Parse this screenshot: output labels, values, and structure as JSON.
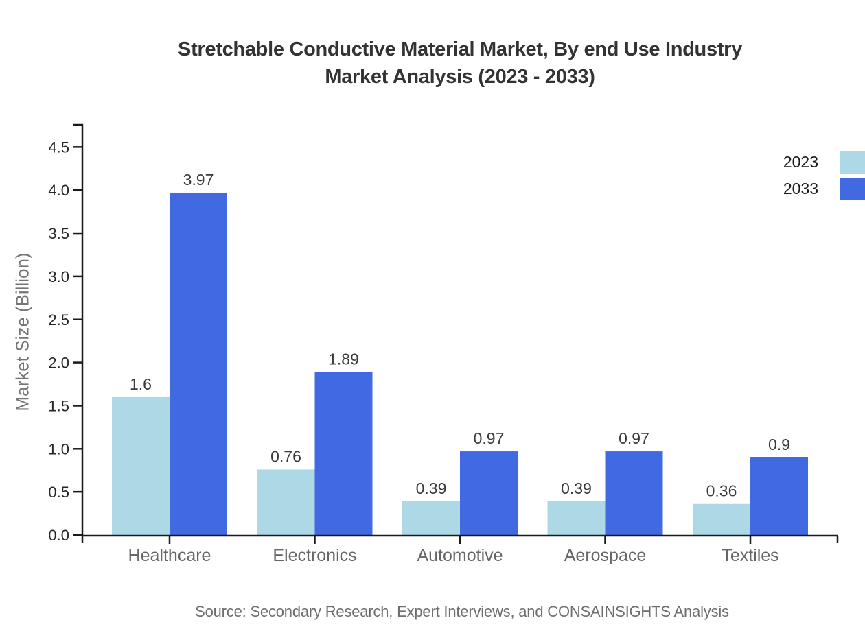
{
  "title": {
    "line1": "Stretchable Conductive Material Market, By end Use Industry",
    "line2": "Market Analysis (2023 - 2033)"
  },
  "source_note": "Source: Secondary Research, Expert Interviews, and CONSAINSIGHTS Analysis",
  "colors": {
    "series_2023": "#ADD8E6",
    "series_2033": "#4169E1",
    "axis": "#1a1a1a",
    "y_tick_label": "#262626",
    "category_label": "#666666",
    "value_label": "#3a3a3a",
    "axis_title": "#757575",
    "title_text": "#333333",
    "source_text": "#6e6e6e"
  },
  "chart_data": {
    "type": "bar",
    "title": "Stretchable Conductive Material Market, By end Use Industry Market Analysis (2023 - 2033)",
    "categories": [
      "Healthcare",
      "Electronics",
      "Automotive",
      "Aerospace",
      "Textiles"
    ],
    "series": [
      {
        "name": "2023",
        "color": "#ADD8E6",
        "values": [
          1.6,
          0.76,
          0.39,
          0.39,
          0.36
        ]
      },
      {
        "name": "2033",
        "color": "#4169E1",
        "values": [
          3.97,
          1.89,
          0.97,
          0.97,
          0.9
        ]
      }
    ],
    "value_labels": [
      "1.6",
      "3.97",
      "0.76",
      "1.89",
      "0.39",
      "0.97",
      "0.39",
      "0.97",
      "0.36",
      "0.9"
    ],
    "xlabel": "",
    "ylabel": "Market Size (Billion)",
    "ylim": [
      0,
      4.75
    ],
    "yticks": [
      0.0,
      0.5,
      1.0,
      1.5,
      2.0,
      2.5,
      3.0,
      3.5,
      4.0,
      4.5
    ],
    "grid": false,
    "legend_position": "top-right",
    "bar_value_labels_shown": true
  }
}
